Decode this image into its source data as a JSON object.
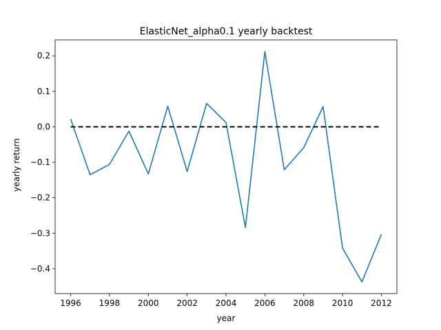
{
  "chart_data": {
    "type": "line",
    "title": "ElasticNet_alpha0.1 yearly backtest",
    "xlabel": "year",
    "ylabel": "yearly return",
    "x": [
      1996,
      1997,
      1998,
      1999,
      2000,
      2001,
      2002,
      2003,
      2004,
      2005,
      2006,
      2007,
      2008,
      2009,
      2010,
      2011,
      2012
    ],
    "series": [
      {
        "values": [
          0.022,
          -0.135,
          -0.106,
          -0.012,
          -0.133,
          0.058,
          -0.126,
          0.066,
          0.012,
          -0.284,
          0.212,
          -0.121,
          -0.059,
          0.057,
          -0.342,
          -0.437,
          -0.303
        ],
        "color": "#1f77b4",
        "style": "solid"
      },
      {
        "values": [
          0,
          0,
          0,
          0,
          0,
          0,
          0,
          0,
          0,
          0,
          0,
          0,
          0,
          0,
          0,
          0,
          0
        ],
        "color": "#000000",
        "style": "dashed"
      }
    ],
    "xlim": [
      1995.2,
      2012.8
    ],
    "ylim": [
      -0.47,
      0.245
    ],
    "xticks": [
      1996,
      1998,
      2000,
      2002,
      2004,
      2006,
      2008,
      2010,
      2012
    ],
    "xtick_labels": [
      "1996",
      "1998",
      "2000",
      "2002",
      "2004",
      "2006",
      "2008",
      "2010",
      "2012"
    ],
    "yticks": [
      -0.4,
      -0.3,
      -0.2,
      -0.1,
      0.0,
      0.1,
      0.2
    ],
    "ytick_labels": [
      "−0.4",
      "−0.3",
      "−0.2",
      "−0.1",
      "0.0",
      "0.1",
      "0.2"
    ],
    "grid": false,
    "legend": "none"
  }
}
